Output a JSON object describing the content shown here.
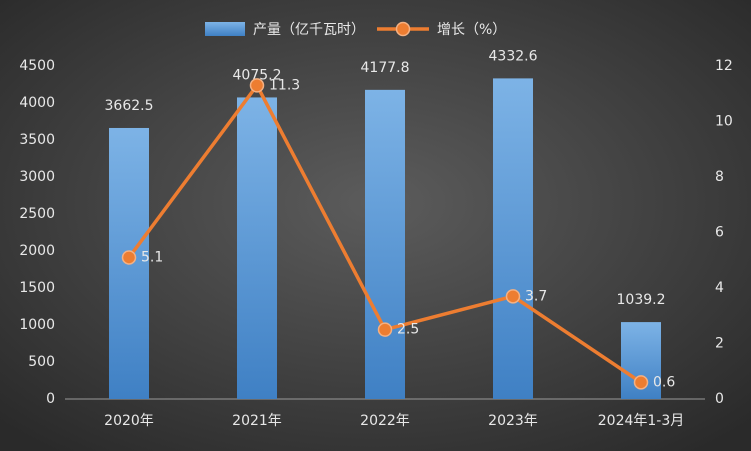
{
  "chart_data": {
    "type": "bar",
    "categories": [
      "2020年",
      "2021年",
      "2022年",
      "2023年",
      "2024年1-3月"
    ],
    "series": [
      {
        "name": "产量（亿千瓦时）",
        "type": "bar",
        "color": "#5b9bd5",
        "values": [
          3662.5,
          4075.2,
          4177.8,
          4332.6,
          1039.2
        ]
      },
      {
        "name": "增长（%）",
        "type": "line",
        "axis": "y2",
        "color": "#ed7d31",
        "values": [
          5.1,
          11.3,
          2.5,
          3.7,
          0.6
        ]
      }
    ],
    "ylim": [
      0,
      4500
    ],
    "yticks": [
      0,
      500,
      1000,
      1500,
      2000,
      2500,
      3000,
      3500,
      4000,
      4500
    ],
    "y2lim": [
      0,
      12
    ],
    "y2ticks": [
      0,
      2,
      4,
      6,
      8,
      10,
      12
    ],
    "legend": "top"
  }
}
